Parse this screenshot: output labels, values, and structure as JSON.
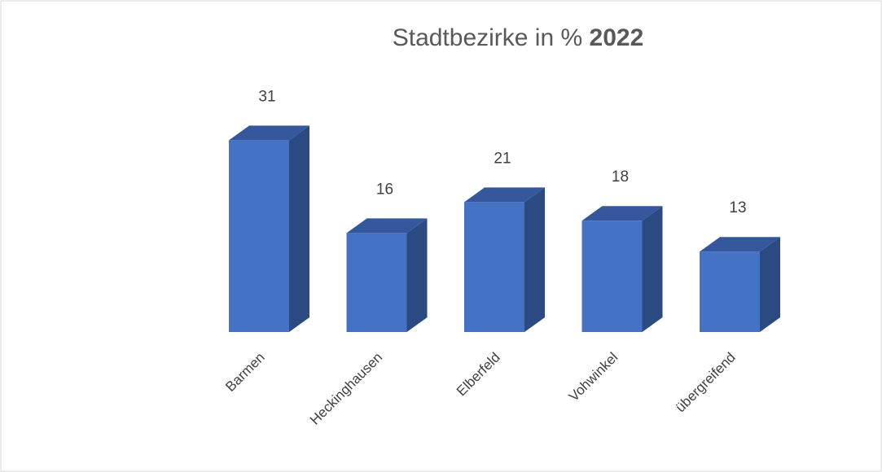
{
  "chart_data": {
    "type": "bar3d",
    "title": [
      "Stadtbezirke in %",
      "2022"
    ],
    "categories": [
      "Barmen",
      "Heckinghausen",
      "Elberfeld",
      "Vohwinkel",
      "übergreifend"
    ],
    "values": [
      31,
      16,
      21,
      18,
      13
    ],
    "color": "#4472c4",
    "ylim": [
      0,
      35
    ]
  }
}
